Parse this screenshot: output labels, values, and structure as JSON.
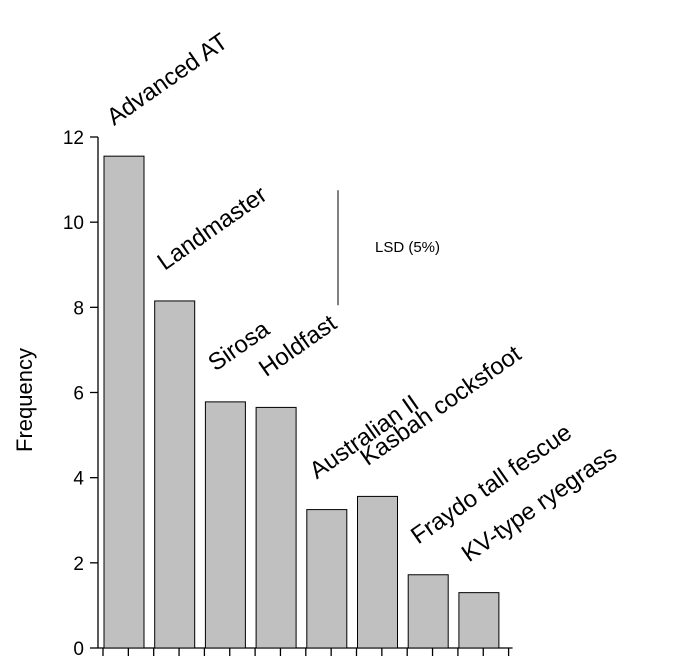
{
  "chart_data": {
    "type": "bar",
    "title": "",
    "xlabel": "",
    "ylabel": "Frequency",
    "ylim": [
      0,
      12
    ],
    "yticks": [
      0,
      2,
      4,
      6,
      8,
      10,
      12
    ],
    "grid": false,
    "categories": [
      "Advanced AT",
      "Landmaster",
      "Sirosa",
      "Holdfast",
      "Australian II",
      "Kasbah cocksfoot",
      "Fraydo tall fescue",
      "KV-type ryegrass"
    ],
    "values": [
      11.55,
      8.15,
      5.78,
      5.65,
      3.25,
      3.56,
      1.72,
      1.3
    ],
    "bar_color": "#c0c0c0",
    "annotation": {
      "label": "LSD (5%)",
      "low": 8.05,
      "high": 10.75
    }
  }
}
